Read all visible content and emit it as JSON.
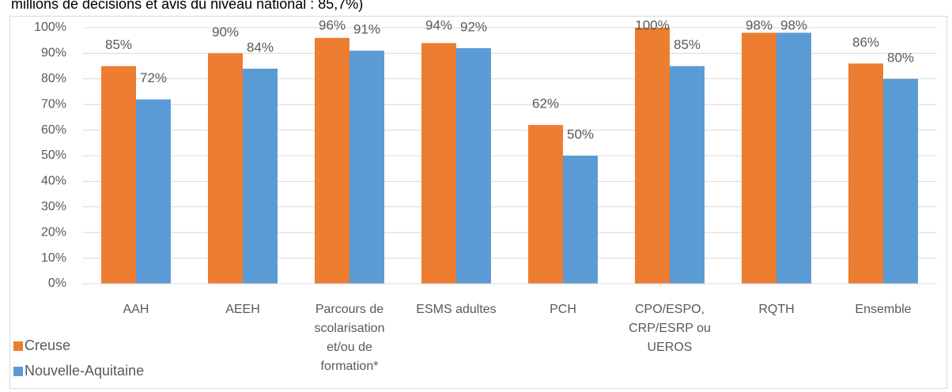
{
  "chart_data": {
    "type": "bar",
    "title": "millions de décisions et avis du niveau national : 85,7%)",
    "categories": [
      "AAH",
      "AEEH",
      "Parcours de scolarisation et/ou de formation*",
      "ESMS adultes",
      "PCH",
      "CPO/ESPO, CRP/ESRP ou UEROS",
      "RQTH",
      "Ensemble"
    ],
    "series": [
      {
        "name": "Creuse",
        "color": "#ed7d31",
        "values": [
          85,
          90,
          96,
          94,
          62,
          100,
          98,
          86
        ],
        "value_labels": [
          "85%",
          "90%",
          "96%",
          "94%",
          "62%",
          "100%",
          "98%",
          "86%"
        ]
      },
      {
        "name": "Nouvelle-Aquitaine",
        "color": "#5b9bd5",
        "values": [
          72,
          84,
          91,
          92,
          50,
          85,
          98,
          80
        ],
        "value_labels": [
          "72%",
          "84%",
          "91%",
          "92%",
          "50%",
          "85%",
          "98%",
          "80%"
        ]
      }
    ],
    "ylim": [
      0,
      100
    ],
    "yticks": [
      {
        "value": 0,
        "label": "0%"
      },
      {
        "value": 10,
        "label": "10%"
      },
      {
        "value": 20,
        "label": "20%"
      },
      {
        "value": 30,
        "label": "30%"
      },
      {
        "value": 40,
        "label": "40%"
      },
      {
        "value": 50,
        "label": "50%"
      },
      {
        "value": 60,
        "label": "60%"
      },
      {
        "value": 70,
        "label": "70%"
      },
      {
        "value": 80,
        "label": "80%"
      },
      {
        "value": 90,
        "label": "90%"
      },
      {
        "value": 100,
        "label": "100%"
      }
    ],
    "grid": true,
    "legend": "bottom-left"
  }
}
